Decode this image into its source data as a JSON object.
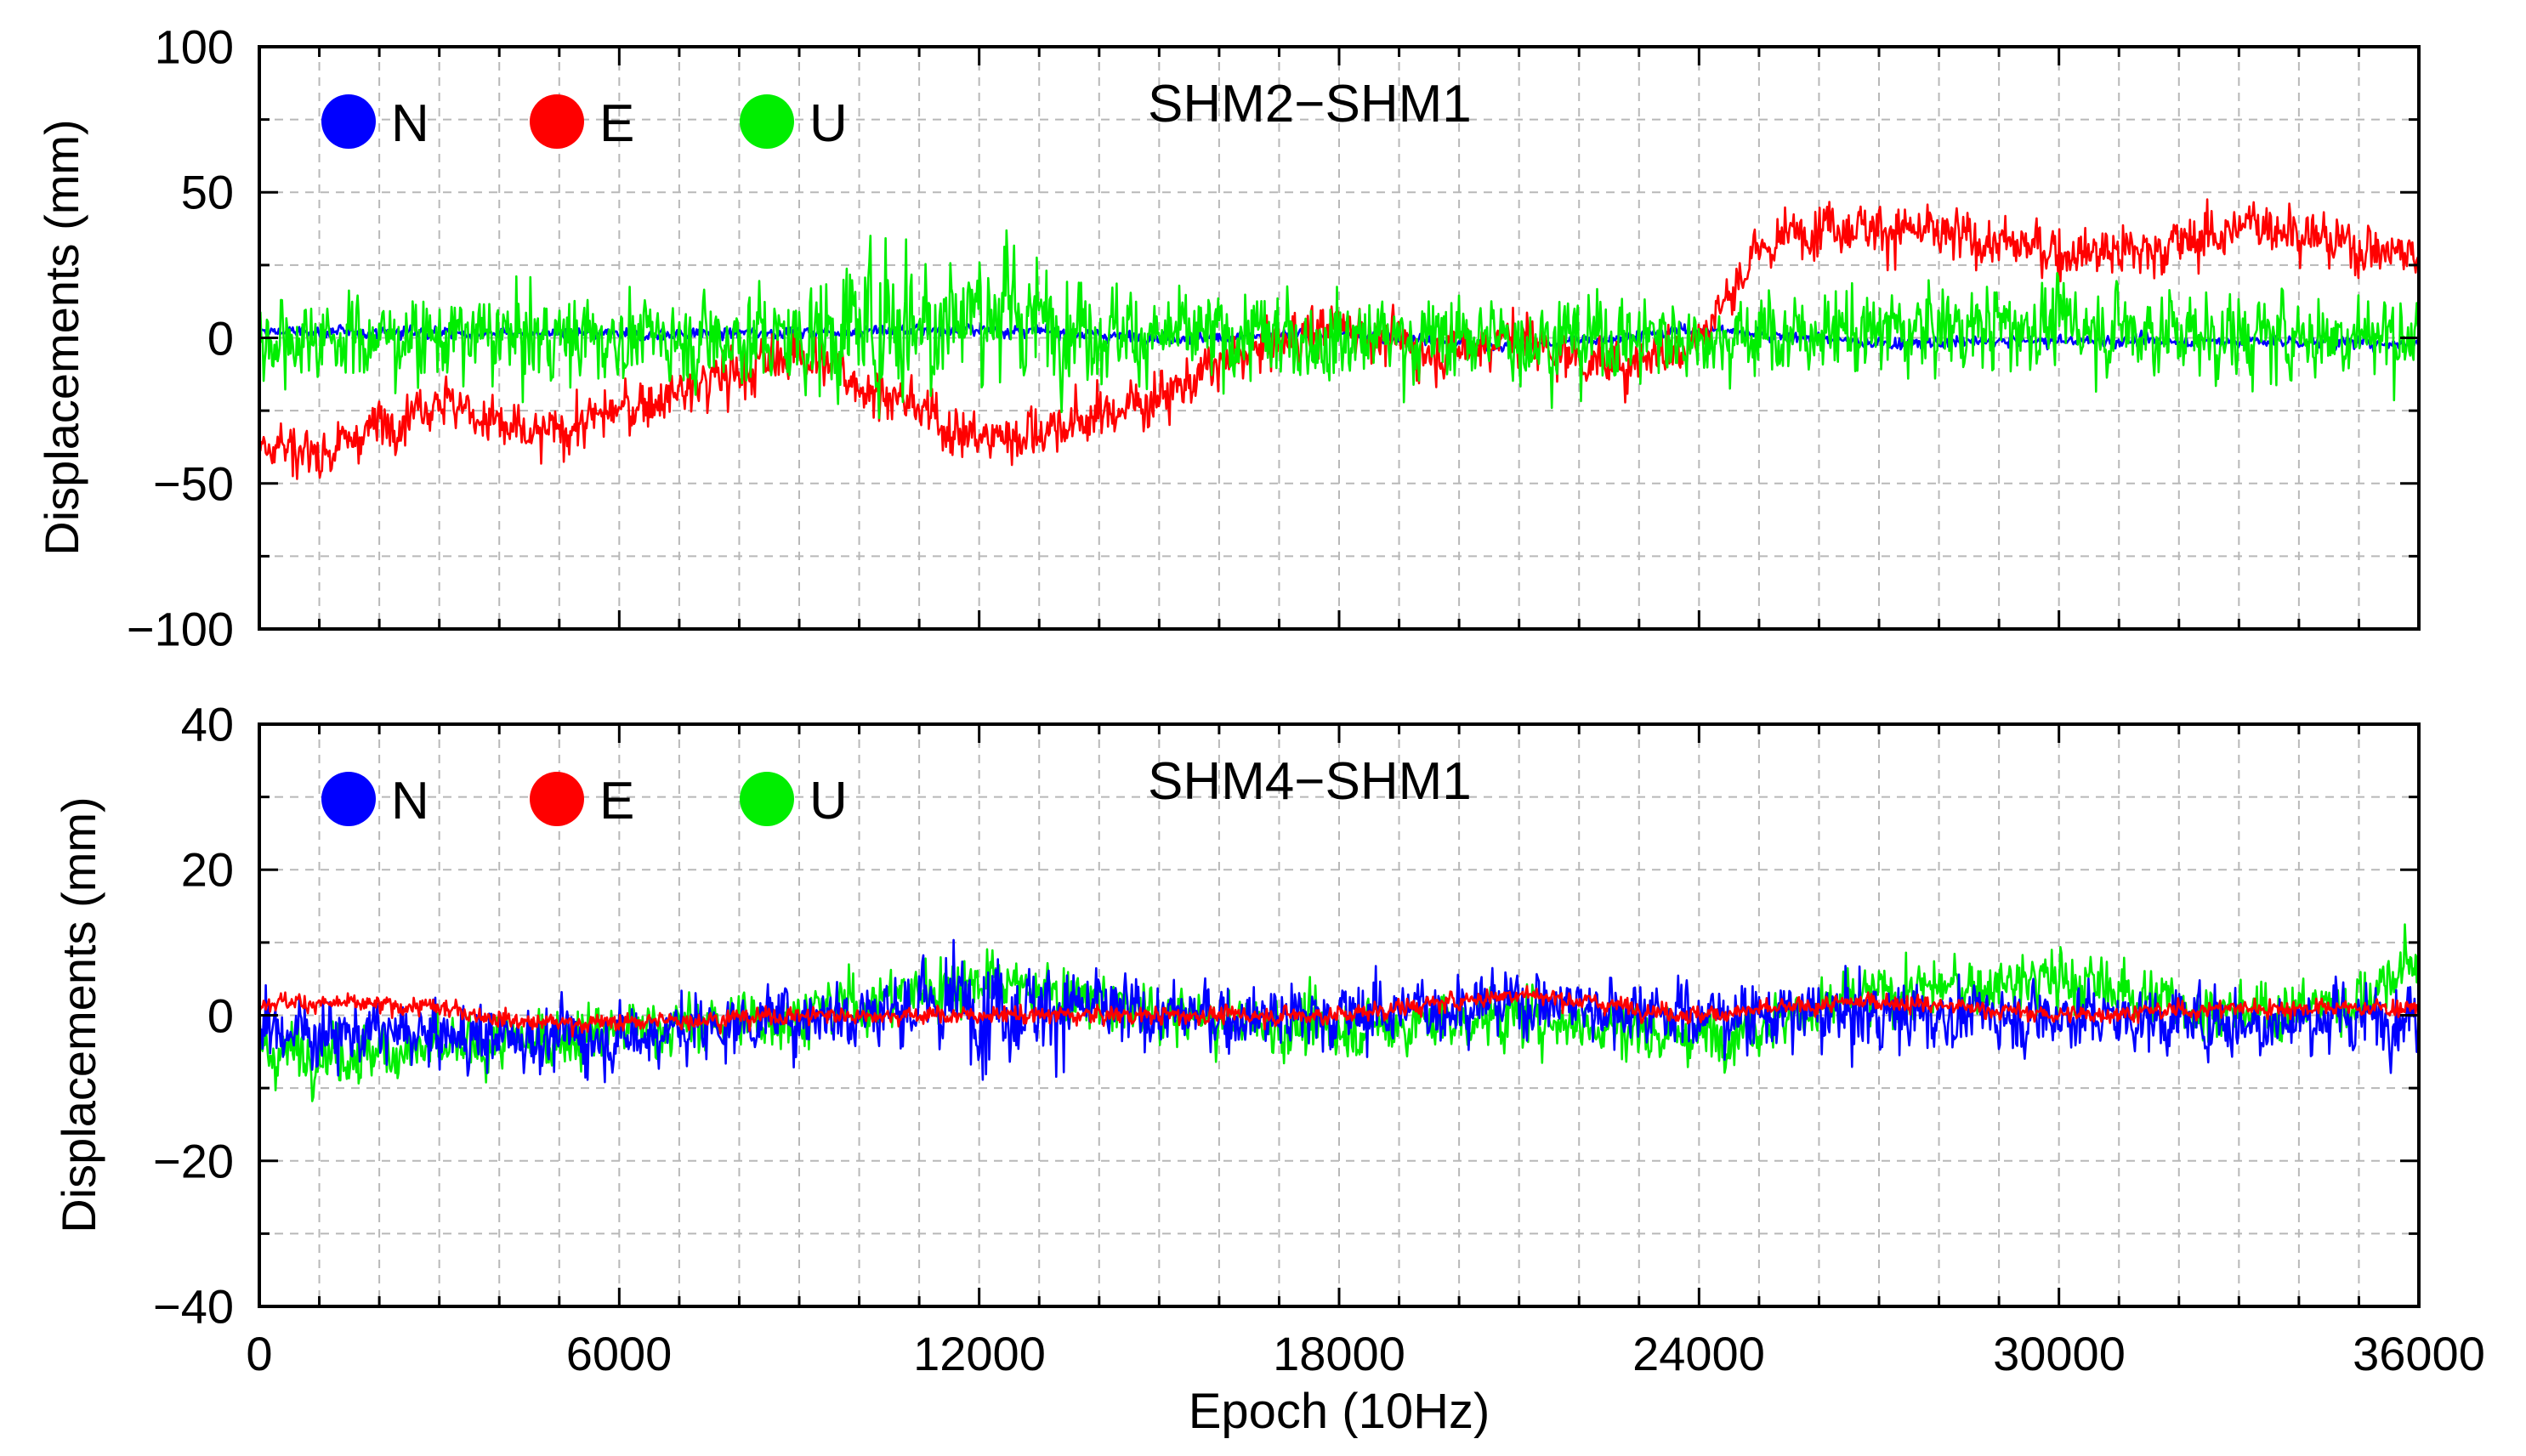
{
  "colors": {
    "N": "#0000ff",
    "E": "#ff0000",
    "U": "#00ee00",
    "grid": "#b8b8b8",
    "frame": "#000000"
  },
  "chart_data": [
    {
      "type": "line",
      "title": "SHM2−SHM1",
      "xlabel": "",
      "ylabel": "Displacements (mm)",
      "xlim": [
        0,
        36000
      ],
      "ylim": [
        -100,
        100
      ],
      "xticks": [
        0,
        6000,
        12000,
        18000,
        24000,
        30000,
        36000
      ],
      "yticks": [
        -100,
        -50,
        0,
        50,
        100
      ],
      "yticklabels": [
        "−100",
        "−50",
        "0",
        "50",
        "100"
      ],
      "grid": true,
      "legend_position": "top-left",
      "series": [
        {
          "name": "N",
          "color": "#0000ff",
          "anchors_x": [
            0,
            3000,
            6000,
            9000,
            12000,
            15000,
            18000,
            21000,
            24000,
            27000,
            30000,
            33000,
            36000
          ],
          "anchors_y": [
            2,
            2,
            1,
            2,
            3,
            0,
            1,
            -3,
            3,
            -2,
            -1,
            -1,
            -2
          ],
          "noise": 2
        },
        {
          "name": "E",
          "color": "#ff0000",
          "anchors_x": [
            0,
            1000,
            2000,
            3000,
            4500,
            6000,
            7500,
            9000,
            10500,
            12000,
            13500,
            15000,
            16500,
            18000,
            19500,
            21000,
            22500,
            24000,
            25000,
            26000,
            27000,
            28000,
            30000,
            31500,
            32500,
            33500,
            34500,
            36000
          ],
          "anchors_y": [
            -35,
            -40,
            -30,
            -20,
            -35,
            -25,
            -15,
            -5,
            -20,
            -35,
            -30,
            -20,
            -5,
            5,
            -5,
            0,
            -10,
            0,
            30,
            40,
            38,
            35,
            30,
            30,
            35,
            40,
            33,
            28
          ],
          "noise": 9
        },
        {
          "name": "U",
          "color": "#00ee00",
          "anchors_x": [
            0,
            6000,
            9000,
            10500,
            12000,
            13500,
            15000,
            18000,
            21000,
            24000,
            27000,
            30000,
            33000,
            36000
          ],
          "anchors_y": [
            0,
            0,
            0,
            5,
            10,
            5,
            0,
            0,
            0,
            0,
            2,
            5,
            0,
            2
          ],
          "noise": 14
        }
      ]
    },
    {
      "type": "line",
      "title": "SHM4−SHM1",
      "xlabel": "Epoch (10Hz)",
      "ylabel": "Displacements (mm)",
      "xlim": [
        0,
        36000
      ],
      "ylim": [
        -40,
        40
      ],
      "xticks": [
        0,
        6000,
        12000,
        18000,
        24000,
        30000,
        36000
      ],
      "xticklabels": [
        "0",
        "6000",
        "12000",
        "18000",
        "24000",
        "30000",
        "36000"
      ],
      "yticks": [
        -40,
        -20,
        0,
        20,
        40
      ],
      "yticklabels": [
        "−40",
        "−20",
        "0",
        "20",
        "40"
      ],
      "grid": true,
      "legend_position": "top-left",
      "series": [
        {
          "name": "U",
          "color": "#00ee00",
          "anchors_x": [
            0,
            3000,
            6000,
            9000,
            12000,
            15000,
            18000,
            21000,
            24000,
            27000,
            30000,
            33000,
            35000,
            36000
          ],
          "anchors_y": [
            -5,
            -5,
            -2,
            0,
            5,
            0,
            -2,
            0,
            -3,
            3,
            5,
            0,
            2,
            8
          ],
          "noise": 4
        },
        {
          "name": "N",
          "color": "#0000ff",
          "anchors_x": [
            0,
            3000,
            6000,
            9000,
            12000,
            15000,
            18000,
            21000,
            24000,
            27000,
            30000,
            33000,
            36000
          ],
          "anchors_y": [
            -2,
            -3,
            -3,
            0,
            2,
            0,
            0,
            2,
            0,
            0,
            0,
            -1,
            0
          ],
          "noise": 4.5
        },
        {
          "name": "E",
          "color": "#ff0000",
          "anchors_x": [
            0,
            3000,
            4500,
            6000,
            9000,
            12000,
            15000,
            18000,
            20000,
            21000,
            24000,
            27000,
            30000,
            33000,
            36000
          ],
          "anchors_y": [
            2,
            1,
            -1,
            -1,
            0,
            0,
            0,
            0,
            2,
            3,
            0,
            2,
            0,
            1,
            1
          ],
          "noise": 1.2
        }
      ]
    }
  ]
}
